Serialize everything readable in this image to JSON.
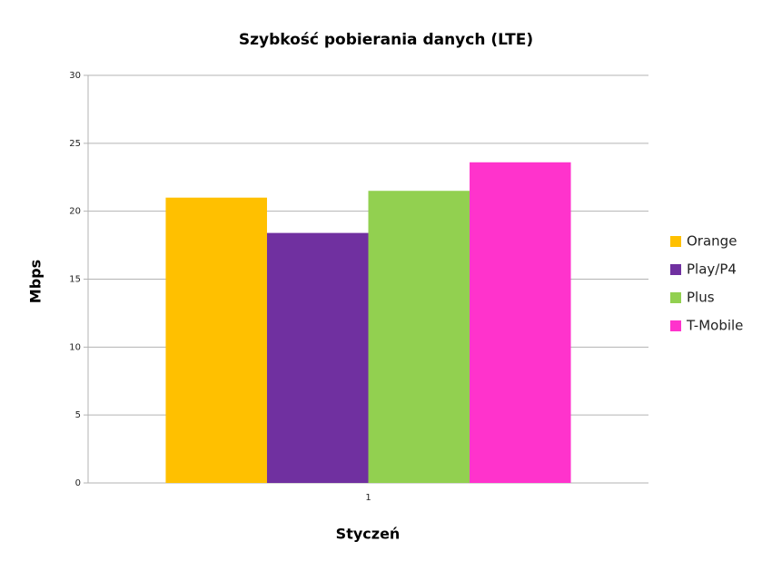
{
  "chart_data": {
    "type": "bar",
    "title": "Szybkość pobierania danych (LTE)",
    "x_label": "Styczeń",
    "y_label": "Mbps",
    "categories": [
      "1"
    ],
    "series": [
      {
        "name": "Orange",
        "color": "#ffc000",
        "values": [
          21.0
        ]
      },
      {
        "name": "Play/P4",
        "color": "#7030a0",
        "values": [
          18.4
        ]
      },
      {
        "name": "Plus",
        "color": "#92d050",
        "values": [
          21.5
        ]
      },
      {
        "name": "T-Mobile",
        "color": "#ff33cc",
        "values": [
          23.6
        ]
      }
    ],
    "ylim": [
      0,
      30
    ],
    "yticks": [
      0,
      5,
      10,
      15,
      20,
      25,
      30
    ],
    "grid": true,
    "legend": "right"
  }
}
